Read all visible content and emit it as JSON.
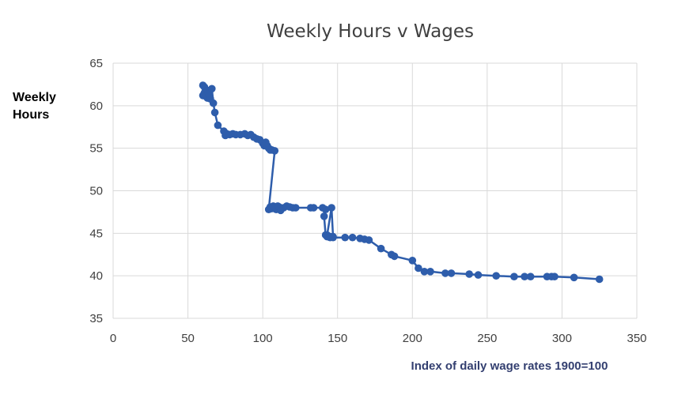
{
  "colors": {
    "series": "#2E5DAB",
    "grid": "#D9D9D9",
    "xlabel": "#333F70"
  },
  "chart_data": {
    "type": "line",
    "title": "Weekly Hours v Wages",
    "ylabel": [
      "Weekly",
      "Hours"
    ],
    "xlabel": "Index of daily wage rates 1900=100",
    "xlim": [
      0,
      350
    ],
    "ylim": [
      35,
      65
    ],
    "xticks": [
      0,
      50,
      100,
      150,
      200,
      250,
      300,
      350
    ],
    "yticks": [
      35,
      40,
      45,
      50,
      55,
      60,
      65
    ],
    "grid": true,
    "markers": true,
    "series": [
      {
        "x": [
          60,
          60,
          61,
          61,
          62,
          63,
          63,
          64,
          65,
          66,
          67,
          68,
          70,
          74,
          75,
          76,
          78,
          80,
          82,
          85,
          88,
          90,
          92,
          94,
          96,
          98,
          100,
          101,
          102,
          103,
          104,
          105,
          106,
          108,
          104,
          105,
          106,
          107,
          108,
          109,
          110,
          111,
          112,
          114,
          116,
          118,
          120,
          122,
          132,
          134,
          140,
          142,
          141,
          142,
          143,
          145,
          147,
          146,
          143,
          145,
          147,
          155,
          160,
          165,
          168,
          171,
          179,
          186,
          188,
          200,
          204,
          208,
          212,
          222,
          226,
          238,
          244,
          256,
          268,
          275,
          279,
          290,
          293,
          295,
          308,
          325
        ],
        "y": [
          62.4,
          61.2,
          62.2,
          61.5,
          61.1,
          61.8,
          60.9,
          61.4,
          60.8,
          62.0,
          60.3,
          59.2,
          57.7,
          57.0,
          56.5,
          56.7,
          56.6,
          56.7,
          56.6,
          56.6,
          56.7,
          56.5,
          56.6,
          56.3,
          56.1,
          56.0,
          55.6,
          55.3,
          55.7,
          55.3,
          55.0,
          54.8,
          54.8,
          54.7,
          47.8,
          48.1,
          47.9,
          48.2,
          48.0,
          47.8,
          48.2,
          48.1,
          47.7,
          48.0,
          48.2,
          48.1,
          48.0,
          48.0,
          48.0,
          48.0,
          48.0,
          47.8,
          47.0,
          44.8,
          44.6,
          44.5,
          44.6,
          48.0,
          44.8,
          44.6,
          44.5,
          44.5,
          44.5,
          44.4,
          44.3,
          44.2,
          43.2,
          42.5,
          42.3,
          41.8,
          40.9,
          40.5,
          40.5,
          40.3,
          40.3,
          40.2,
          40.1,
          40.0,
          39.9,
          39.9,
          39.9,
          39.9,
          39.9,
          39.9,
          39.8,
          39.6
        ]
      }
    ]
  }
}
